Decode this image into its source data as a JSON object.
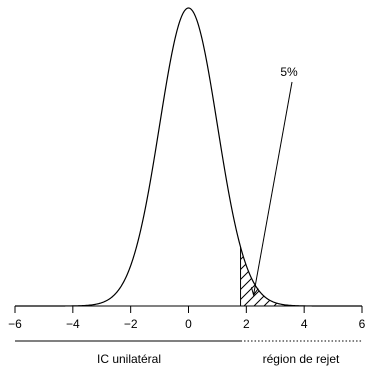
{
  "chart_data": {
    "type": "line",
    "distribution": "normal",
    "mean": 0,
    "sd": 1,
    "xlim": [
      -6,
      6
    ],
    "x_ticks": [
      -6,
      -4,
      -2,
      0,
      2,
      4,
      6
    ],
    "x_tick_labels": [
      "−6",
      "−4",
      "−2",
      "0",
      "2",
      "4",
      "6"
    ],
    "critical_value": 1.8,
    "shaded_region": {
      "from": 1.8,
      "to": 6,
      "pattern": "hatch"
    },
    "annotation": {
      "text": "5%",
      "arrow_target_x": 2.25
    },
    "intervals": {
      "ci_label": "IC unilatéral",
      "ci_range": [
        -6,
        1.8
      ],
      "reject_label": "région de rejet",
      "reject_range": [
        1.8,
        6
      ]
    },
    "grid": false,
    "title": "",
    "xlabel": "",
    "ylabel": ""
  }
}
